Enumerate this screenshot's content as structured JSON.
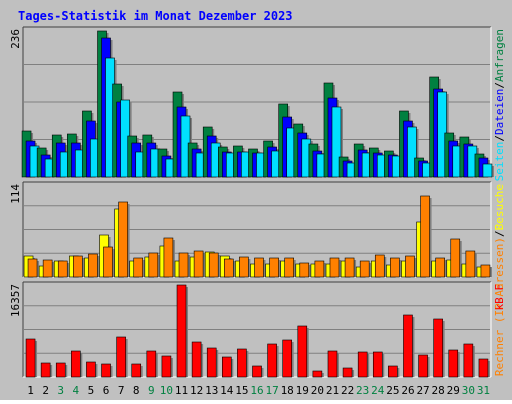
{
  "chart_data": [
    {
      "type": "bar",
      "title": "Tages-Statistik im Monat Dezember 2023",
      "categories": [
        "1",
        "2",
        "3",
        "4",
        "5",
        "6",
        "7",
        "8",
        "9",
        "10",
        "11",
        "12",
        "13",
        "14",
        "15",
        "16",
        "17",
        "18",
        "19",
        "20",
        "21",
        "22",
        "23",
        "24",
        "25",
        "26",
        "27",
        "28",
        "29",
        "30",
        "31"
      ],
      "ymax_label": "236",
      "ylim": [
        0,
        236
      ],
      "grid": true,
      "series": [
        {
          "name": "Anfragen",
          "color": "#008040",
          "values": [
            73,
            47,
            67,
            68,
            105,
            233,
            148,
            66,
            67,
            45,
            135,
            55,
            80,
            48,
            50,
            44,
            58,
            117,
            84,
            53,
            150,
            32,
            52,
            46,
            42,
            105,
            31,
            159,
            70,
            63,
            37
          ]
        },
        {
          "name": "Dateien",
          "color": "#0000ff",
          "values": [
            58,
            35,
            55,
            55,
            89,
            221,
            120,
            55,
            55,
            34,
            112,
            45,
            65,
            40,
            40,
            38,
            48,
            96,
            70,
            42,
            126,
            25,
            43,
            38,
            35,
            90,
            25,
            140,
            58,
            52,
            30
          ]
        },
        {
          "name": "Seiten",
          "color": "#00e0ff",
          "values": [
            50,
            28,
            40,
            43,
            60,
            190,
            122,
            40,
            45,
            28,
            97,
            38,
            55,
            38,
            40,
            38,
            42,
            78,
            60,
            37,
            112,
            22,
            38,
            35,
            33,
            80,
            22,
            135,
            50,
            50,
            20
          ]
        }
      ],
      "right_labels": [
        "Anfragen",
        "Dateien",
        "Seiten"
      ]
    },
    {
      "type": "bar",
      "ymax_label": "114",
      "ylim": [
        0,
        114
      ],
      "grid": true,
      "series": [
        {
          "name": "Besuche",
          "color": "#ffff00",
          "values": [
            26,
            14,
            20,
            26,
            23,
            51,
            83,
            19,
            24,
            38,
            20,
            24,
            31,
            26,
            20,
            16,
            16,
            20,
            16,
            16,
            16,
            19,
            12,
            19,
            15,
            19,
            67,
            20,
            21,
            16,
            12
          ]
        },
        {
          "name": "Rechner (IP-Adressen)",
          "color": "#ff8000",
          "values": [
            22,
            21,
            19,
            26,
            28,
            37,
            92,
            23,
            29,
            48,
            29,
            32,
            30,
            22,
            24,
            23,
            23,
            23,
            17,
            19,
            23,
            23,
            19,
            27,
            23,
            26,
            99,
            23,
            46,
            32,
            15
          ]
        }
      ],
      "right_labels": [
        "Besuche",
        "Rechner (IP-Adressen)"
      ]
    },
    {
      "type": "bar",
      "ymax_label": "16357",
      "ylim": [
        0,
        16357
      ],
      "grid": true,
      "series": [
        {
          "name": "kB F",
          "color": "#ff0000",
          "values": [
            6750,
            2520,
            2520,
            4500,
            2700,
            2250,
            7070,
            2250,
            4500,
            3660,
            16200,
            6240,
            5180,
            3460,
            4880,
            1850,
            5800,
            6580,
            9040,
            1020,
            4650,
            1580,
            4350,
            4390,
            1850,
            10850,
            3890,
            10280,
            4730,
            5800,
            3130
          ]
        }
      ],
      "right_labels": [
        "kB F"
      ]
    }
  ],
  "x_day_colors": [
    "#000000",
    "#000000",
    "#008040",
    "#008040",
    "#000000",
    "#000000",
    "#000000",
    "#000000",
    "#008040",
    "#008040",
    "#000000",
    "#000000",
    "#000000",
    "#000000",
    "#000000",
    "#008040",
    "#008040",
    "#000000",
    "#000000",
    "#000000",
    "#000000",
    "#000000",
    "#008040",
    "#008040",
    "#000000",
    "#000000",
    "#000000",
    "#000000",
    "#000000",
    "#008040",
    "#008040"
  ],
  "colors": {
    "background": "#c0c0c0",
    "title": "#0000ff",
    "grid": "#808080",
    "axis": "#000000"
  }
}
